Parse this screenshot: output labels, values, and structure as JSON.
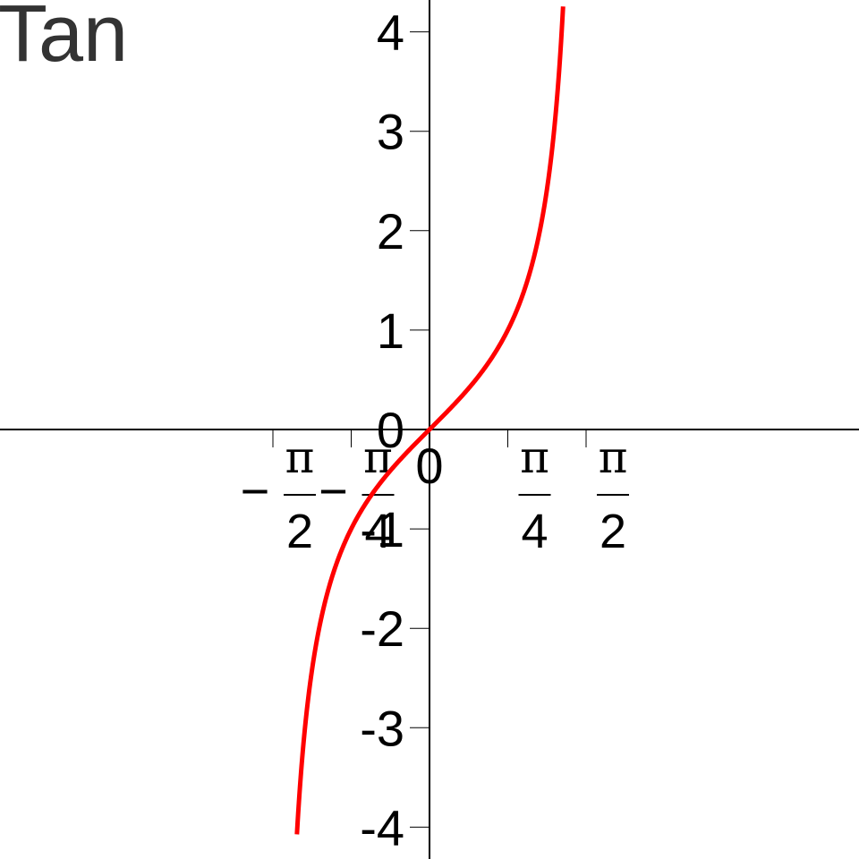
{
  "chart_data": {
    "type": "line",
    "title": "Tan",
    "function": "tan(x)",
    "xlim": [
      -1.5708,
      1.5708
    ],
    "ylim": [
      -4.3,
      4.3
    ],
    "x_ticks": [
      {
        "value": -1.5708,
        "sign": "−",
        "numerator": "π",
        "denominator": "2"
      },
      {
        "value": -0.7854,
        "sign": "−",
        "numerator": "π",
        "denominator": "4"
      },
      {
        "value": 0,
        "label": "0"
      },
      {
        "value": 0.7854,
        "sign": "",
        "numerator": "π",
        "denominator": "4"
      },
      {
        "value": 1.5708,
        "sign": "",
        "numerator": "π",
        "denominator": "2"
      }
    ],
    "y_ticks": [
      {
        "value": -4,
        "label": "-4"
      },
      {
        "value": -3,
        "label": "-3"
      },
      {
        "value": -2,
        "label": "-2"
      },
      {
        "value": -1,
        "label": "-1"
      },
      {
        "value": 0,
        "label": "0"
      },
      {
        "value": 1,
        "label": "1"
      },
      {
        "value": 2,
        "label": "2"
      },
      {
        "value": 3,
        "label": "3"
      },
      {
        "value": 4,
        "label": "4"
      }
    ],
    "series": [
      {
        "color": "#ff0000",
        "x_range": [
          -1.33,
          1.34
        ]
      }
    ],
    "grid": false,
    "legend": "none"
  }
}
